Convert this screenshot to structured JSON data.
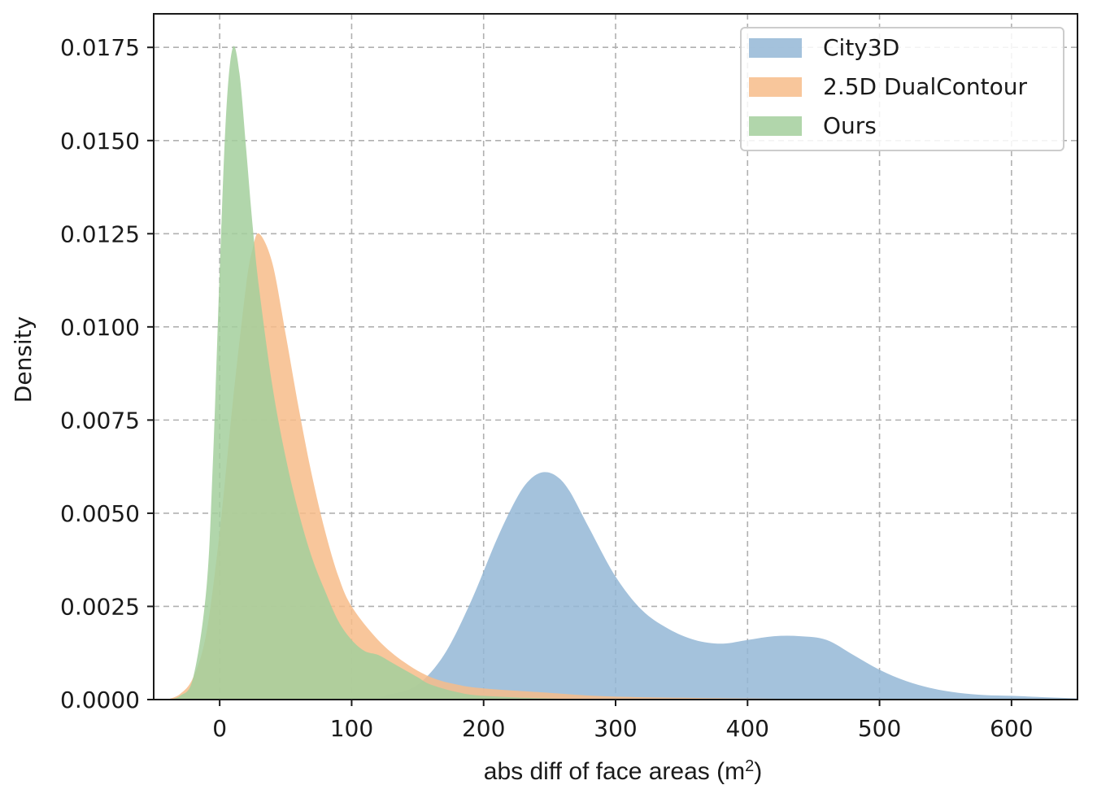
{
  "chart_data": {
    "type": "area",
    "xlabel_main": "abs diff of face areas (m",
    "xlabel_sup": "2",
    "xlabel_end": ")",
    "ylabel": "Density",
    "xlim": [
      -50,
      650
    ],
    "ylim": [
      0,
      0.0175
    ],
    "x_ticks": [
      0,
      100,
      200,
      300,
      400,
      500,
      600
    ],
    "y_ticks": [
      0.0,
      0.0025,
      0.005,
      0.0075,
      0.01,
      0.0125,
      0.015,
      0.0175
    ],
    "x_tick_labels": [
      "0",
      "100",
      "200",
      "300",
      "400",
      "500",
      "600"
    ],
    "y_tick_labels": [
      "0.0000",
      "0.0025",
      "0.0050",
      "0.0075",
      "0.0100",
      "0.0125",
      "0.0150",
      "0.0175"
    ],
    "grid": true,
    "legend_position": "top-right",
    "series": [
      {
        "name": "City3D",
        "color": "#94b7d6",
        "x": [
          -40,
          100,
          130,
          150,
          170,
          190,
          210,
          225,
          235,
          245,
          255,
          265,
          280,
          300,
          320,
          340,
          360,
          380,
          400,
          420,
          440,
          460,
          480,
          500,
          520,
          540,
          560,
          580,
          600,
          620,
          650
        ],
        "y": [
          0,
          4e-05,
          0.00015,
          0.0004,
          0.0012,
          0.0026,
          0.0043,
          0.0054,
          0.0059,
          0.0061,
          0.006,
          0.0056,
          0.0046,
          0.0033,
          0.0024,
          0.0019,
          0.0016,
          0.0015,
          0.0016,
          0.0017,
          0.0017,
          0.0016,
          0.0012,
          0.0008,
          0.0005,
          0.0003,
          0.00018,
          0.00012,
          0.0001,
          7e-05,
          3e-05
        ]
      },
      {
        "name": "2.5D DualContour",
        "color": "#f7bc8a",
        "x": [
          -40,
          -30,
          -20,
          -10,
          0,
          10,
          20,
          25,
          30,
          40,
          50,
          60,
          70,
          80,
          90,
          100,
          120,
          140,
          160,
          180,
          200,
          250,
          300,
          400,
          500,
          650
        ],
        "y": [
          0,
          0.00015,
          0.0006,
          0.0018,
          0.0045,
          0.008,
          0.0111,
          0.0121,
          0.0125,
          0.0117,
          0.0098,
          0.0078,
          0.006,
          0.0045,
          0.0033,
          0.0025,
          0.0016,
          0.001,
          0.0006,
          0.0004,
          0.0003,
          0.00018,
          8e-05,
          3e-05,
          1e-05,
          0
        ]
      },
      {
        "name": "Ours",
        "color": "#a3cf9c",
        "x": [
          -40,
          -30,
          -20,
          -10,
          -5,
          0,
          5,
          10,
          15,
          20,
          25,
          30,
          40,
          50,
          60,
          70,
          80,
          90,
          100,
          110,
          120,
          130,
          140,
          150,
          160,
          180,
          200,
          250,
          300,
          400,
          650
        ],
        "y": [
          0,
          0.0001,
          0.0006,
          0.003,
          0.0065,
          0.0115,
          0.0158,
          0.0175,
          0.0168,
          0.0148,
          0.0127,
          0.011,
          0.0084,
          0.0065,
          0.005,
          0.0038,
          0.0029,
          0.0021,
          0.0016,
          0.0013,
          0.0012,
          0.001,
          0.0008,
          0.0006,
          0.0004,
          0.0002,
          0.0001,
          3e-05,
          1e-05,
          0,
          0
        ]
      }
    ]
  }
}
